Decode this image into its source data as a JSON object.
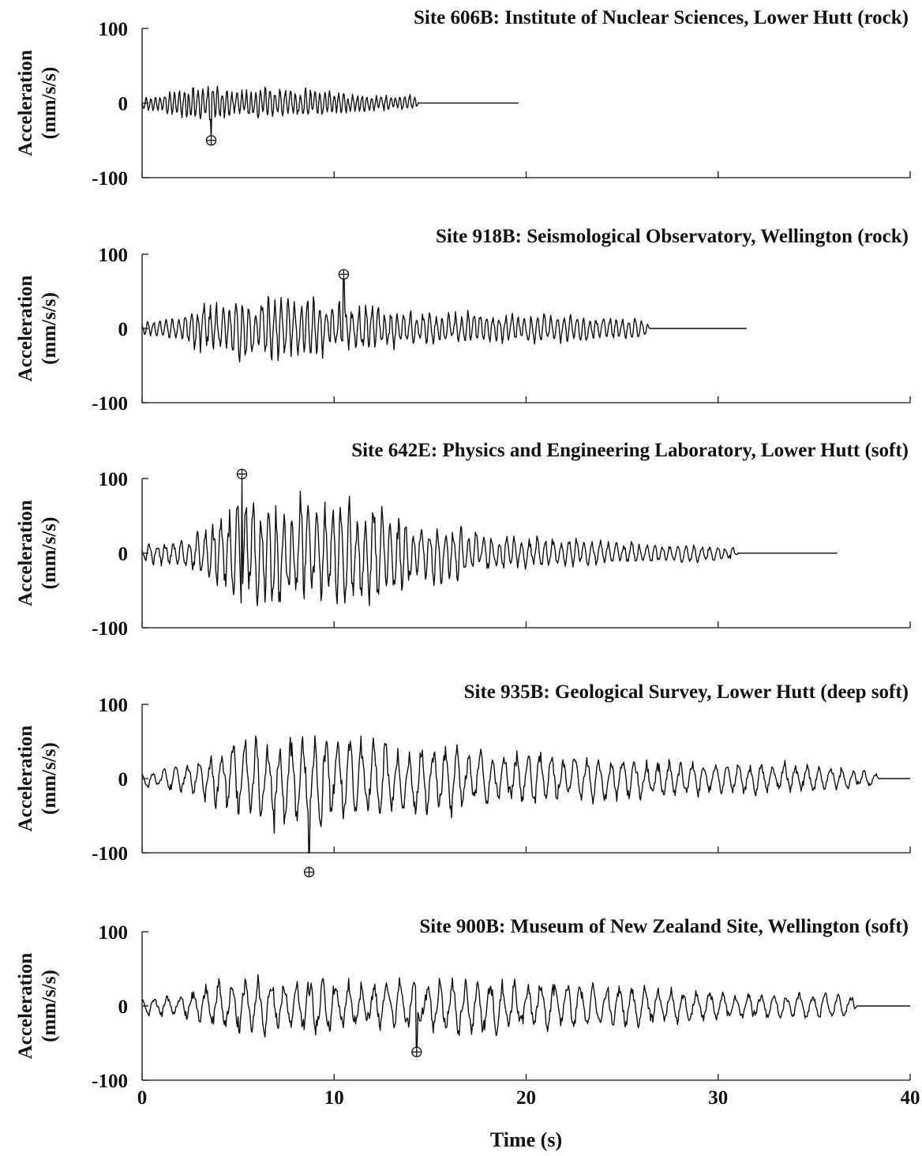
{
  "chart_data": [
    {
      "type": "line",
      "title": "Site 606B: Institute of Nuclear Sciences, Lower Hutt (rock)",
      "ylabel": [
        "Acceleration",
        "(mm/s/s)"
      ],
      "ylim": [
        -100,
        100
      ],
      "yticks": [
        100,
        0,
        -100
      ],
      "xlim": [
        0,
        40
      ],
      "record_end": 19.6,
      "motion_end": 14.4,
      "profile": [
        [
          0,
          10
        ],
        [
          0.8,
          14
        ],
        [
          2,
          22
        ],
        [
          3.5,
          32
        ],
        [
          4.5,
          22
        ],
        [
          7,
          24
        ],
        [
          10,
          18
        ],
        [
          12,
          14
        ],
        [
          14.2,
          12
        ],
        [
          14.4,
          2
        ]
      ],
      "period": 0.25,
      "seed": 11,
      "peaks": [
        {
          "x": 3.6,
          "y": -50
        }
      ],
      "show_x_ticklabels": false
    },
    {
      "type": "line",
      "title": "Site 918B: Seismological Observatory, Wellington (rock)",
      "ylabel": [
        "Acceleration",
        "(mm/s/s)"
      ],
      "ylim": [
        -100,
        100
      ],
      "yticks": [
        100,
        0,
        -100
      ],
      "xlim": [
        0,
        40
      ],
      "record_end": 31.5,
      "motion_end": 26.4,
      "profile": [
        [
          0,
          10
        ],
        [
          1.5,
          16
        ],
        [
          3,
          35
        ],
        [
          5,
          48
        ],
        [
          7,
          52
        ],
        [
          9,
          46
        ],
        [
          11,
          38
        ],
        [
          14,
          26
        ],
        [
          18,
          22
        ],
        [
          22,
          20
        ],
        [
          26.2,
          16
        ],
        [
          26.4,
          2
        ]
      ],
      "period": 0.34,
      "seed": 23,
      "peaks": [
        {
          "x": 10.5,
          "y": 73
        }
      ],
      "show_x_ticklabels": false
    },
    {
      "type": "line",
      "title": "Site 642E: Physics and Engineering Laboratory, Lower Hutt (soft)",
      "ylabel": [
        "Acceleration",
        "(mm/s/s)"
      ],
      "ylim": [
        -100,
        100
      ],
      "yticks": [
        100,
        0,
        -100
      ],
      "xlim": [
        0,
        40
      ],
      "record_end": 36.2,
      "motion_end": 31.0,
      "profile": [
        [
          0,
          16
        ],
        [
          2,
          22
        ],
        [
          3.4,
          45
        ],
        [
          4.5,
          72
        ],
        [
          7,
          85
        ],
        [
          9,
          78
        ],
        [
          11,
          88
        ],
        [
          13,
          62
        ],
        [
          15,
          48
        ],
        [
          18,
          30
        ],
        [
          22,
          22
        ],
        [
          26,
          16
        ],
        [
          30.8,
          12
        ],
        [
          31,
          2
        ]
      ],
      "period": 0.42,
      "seed": 37,
      "peaks": [
        {
          "x": 5.2,
          "y": 106
        }
      ],
      "show_x_ticklabels": false
    },
    {
      "type": "line",
      "title": "Site 935B: Geological Survey, Lower Hutt (deep soft)",
      "ylabel": [
        "Acceleration",
        "(mm/s/s)"
      ],
      "ylim": [
        -100,
        100
      ],
      "yticks": [
        100,
        0,
        -100
      ],
      "xlim": [
        0,
        40
      ],
      "record_end": 40,
      "motion_end": 38.4,
      "profile": [
        [
          0,
          14
        ],
        [
          2,
          20
        ],
        [
          3.8,
          42
        ],
        [
          5,
          58
        ],
        [
          7,
          72
        ],
        [
          9,
          76
        ],
        [
          11,
          62
        ],
        [
          14,
          55
        ],
        [
          17,
          46
        ],
        [
          20,
          42
        ],
        [
          24,
          36
        ],
        [
          28,
          26
        ],
        [
          32,
          24
        ],
        [
          36,
          20
        ],
        [
          38.2,
          10
        ],
        [
          38.4,
          2
        ]
      ],
      "period": 0.62,
      "seed": 53,
      "peaks": [
        {
          "x": 8.7,
          "y": -126
        }
      ],
      "show_x_ticklabels": false
    },
    {
      "type": "line",
      "title": "Site 900B: Museum of New Zealand Site, Wellington (soft)",
      "ylabel": [
        "Acceleration",
        "(mm/s/s)"
      ],
      "ylim": [
        -100,
        100
      ],
      "yticks": [
        100,
        0,
        -100
      ],
      "xlim": [
        0,
        40
      ],
      "xticks": [
        0,
        10,
        20,
        30,
        40
      ],
      "xlabel": "Time (s)",
      "record_end": 40,
      "motion_end": 37.2,
      "profile": [
        [
          0,
          12
        ],
        [
          2,
          20
        ],
        [
          3.5,
          34
        ],
        [
          5,
          44
        ],
        [
          7,
          42
        ],
        [
          9,
          44
        ],
        [
          12,
          36
        ],
        [
          15,
          44
        ],
        [
          18,
          46
        ],
        [
          21,
          36
        ],
        [
          25,
          32
        ],
        [
          29,
          24
        ],
        [
          33,
          20
        ],
        [
          37,
          18
        ],
        [
          37.2,
          2
        ]
      ],
      "period": 0.68,
      "seed": 71,
      "peaks": [
        {
          "x": 14.3,
          "y": -62
        }
      ],
      "show_x_ticklabels": true
    }
  ]
}
